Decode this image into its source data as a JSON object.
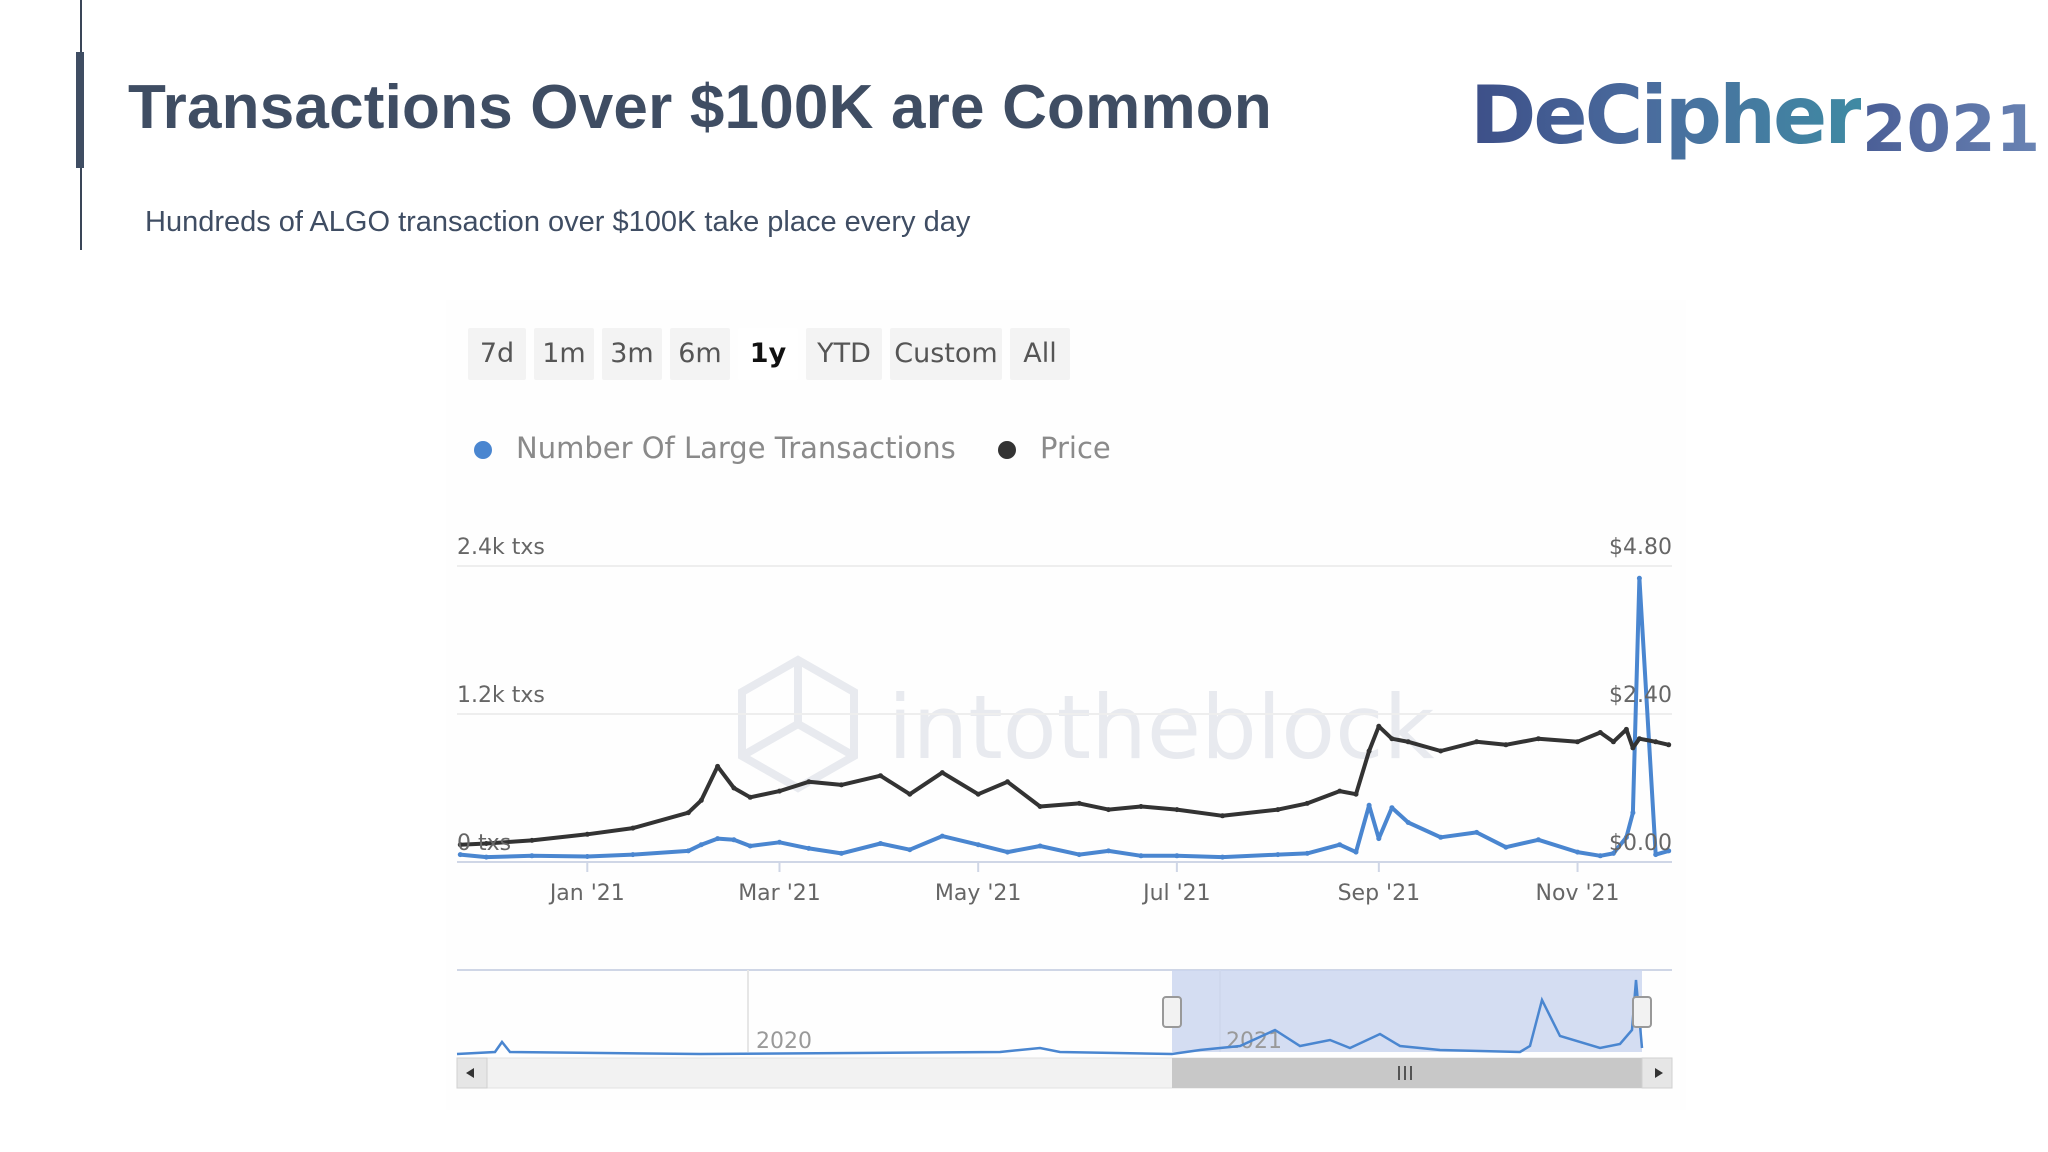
{
  "slide": {
    "title": "Transactions Over $100K are Common",
    "subtitle": "Hundreds of ALGO transaction over $100K take place every day"
  },
  "logo": {
    "word": "DeCipher",
    "year": "2021"
  },
  "range_selector": {
    "options": [
      "7d",
      "1m",
      "3m",
      "6m",
      "1y",
      "YTD",
      "Custom",
      "All"
    ],
    "selected": "1y"
  },
  "watermark": "intotheblock",
  "chart_data": {
    "type": "line",
    "legend": [
      "Number Of Large Transactions",
      "Price"
    ],
    "legend_placement": "top-left",
    "x_ticks": [
      "Jan '21",
      "Mar '21",
      "May '21",
      "Jul '21",
      "Sep '21",
      "Nov '21"
    ],
    "y_left": {
      "ticks": [
        "0 txs",
        "1.2k txs",
        "2.4k txs"
      ],
      "range": [
        0,
        2400
      ]
    },
    "y_right": {
      "ticks": [
        "$0.00",
        "$2.40",
        "$4.80"
      ],
      "range": [
        0,
        4.8
      ]
    },
    "x": [
      "2020-11-23",
      "2020-12-01",
      "2020-12-15",
      "2021-01-01",
      "2021-01-15",
      "2021-02-01",
      "2021-02-05",
      "2021-02-10",
      "2021-02-15",
      "2021-02-20",
      "2021-03-01",
      "2021-03-10",
      "2021-03-20",
      "2021-04-01",
      "2021-04-10",
      "2021-04-20",
      "2021-05-01",
      "2021-05-10",
      "2021-05-20",
      "2021-06-01",
      "2021-06-10",
      "2021-06-20",
      "2021-07-01",
      "2021-07-15",
      "2021-08-01",
      "2021-08-10",
      "2021-08-20",
      "2021-08-25",
      "2021-08-29",
      "2021-09-01",
      "2021-09-05",
      "2021-09-10",
      "2021-09-20",
      "2021-10-01",
      "2021-10-10",
      "2021-10-20",
      "2021-11-01",
      "2021-11-08",
      "2021-11-12",
      "2021-11-16",
      "2021-11-18",
      "2021-11-20",
      "2021-11-25",
      "2021-11-29"
    ],
    "series": [
      {
        "name": "Number Of Large Transactions",
        "color": "#4a86d0",
        "axis": "left",
        "values": [
          60,
          40,
          50,
          45,
          60,
          90,
          140,
          190,
          180,
          130,
          160,
          110,
          70,
          150,
          100,
          210,
          140,
          80,
          130,
          60,
          90,
          50,
          50,
          40,
          60,
          70,
          140,
          80,
          460,
          190,
          440,
          320,
          200,
          240,
          120,
          180,
          80,
          50,
          70,
          200,
          400,
          2300,
          60,
          90
        ]
      },
      {
        "name": "Price",
        "color": "#333333",
        "axis": "right",
        "values": [
          0.28,
          0.3,
          0.35,
          0.45,
          0.55,
          0.8,
          1.0,
          1.55,
          1.2,
          1.05,
          1.15,
          1.3,
          1.25,
          1.4,
          1.1,
          1.45,
          1.1,
          1.3,
          0.9,
          0.95,
          0.85,
          0.9,
          0.85,
          0.75,
          0.85,
          0.95,
          1.15,
          1.1,
          1.8,
          2.2,
          2.0,
          1.95,
          1.8,
          1.95,
          1.9,
          2.0,
          1.95,
          2.1,
          1.95,
          2.15,
          1.85,
          2.0,
          1.95,
          1.9
        ]
      }
    ],
    "navigator": {
      "labels": [
        "2020",
        "2021"
      ],
      "selection": "1y"
    }
  }
}
